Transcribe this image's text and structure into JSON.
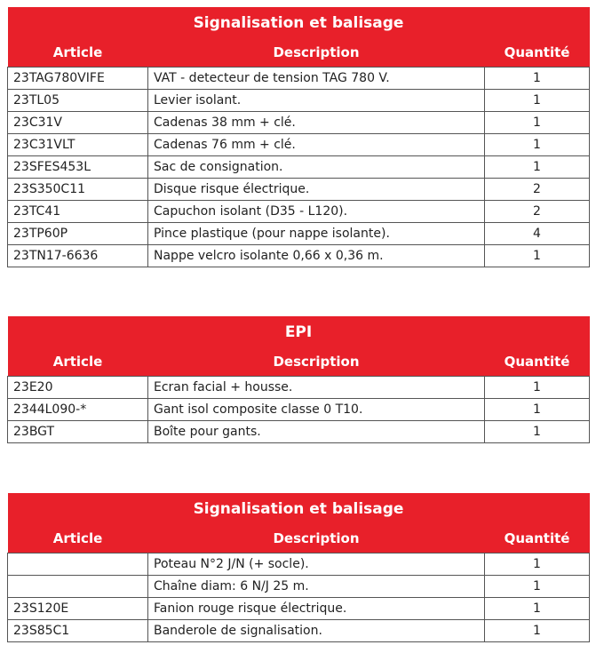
{
  "tables": [
    {
      "title": "Signalisation et balisage",
      "headers": [
        "Article",
        "Description",
        "Quantité"
      ],
      "rows": [
        [
          "23TAG780VIFE",
          "VAT - detecteur de tension TAG 780 V.",
          "1"
        ],
        [
          "23TL05",
          "Levier isolant.",
          "1"
        ],
        [
          "23C31V",
          "Cadenas 38 mm + clé.",
          "1"
        ],
        [
          "23C31VLT",
          "Cadenas 76 mm + clé.",
          "1"
        ],
        [
          "23SFES453L",
          "Sac de consignation.",
          "1"
        ],
        [
          "23S350C11",
          "Disque risque électrique.",
          "2"
        ],
        [
          "23TC41",
          "Capuchon isolant (D35 - L120).",
          "2"
        ],
        [
          "23TP60P",
          "Pince plastique (pour nappe isolante).",
          "4"
        ],
        [
          "23TN17-6636",
          "Nappe velcro isolante 0,66 x 0,36 m.",
          "1"
        ]
      ]
    },
    {
      "title": "EPI",
      "headers": [
        "Article",
        "Description",
        "Quantité"
      ],
      "rows": [
        [
          "23E20",
          "Ecran facial + housse.",
          "1"
        ],
        [
          "2344L090-*",
          "Gant isol composite classe 0 T10.",
          "1"
        ],
        [
          "23BGT",
          "Boîte pour gants.",
          "1"
        ]
      ]
    },
    {
      "title": "Signalisation et balisage",
      "headers": [
        "Article",
        "Description",
        "Quantité"
      ],
      "rows": [
        [
          null,
          "Poteau N°2 J/N (+ socle).",
          "1"
        ],
        [
          null,
          "Chaîne diam: 6 N/J 25 m.",
          "1"
        ],
        [
          "23S120E",
          "Fanion rouge risque électrique.",
          "1"
        ],
        [
          "23S85C1",
          "Banderole de signalisation.",
          "1"
        ]
      ]
    }
  ]
}
